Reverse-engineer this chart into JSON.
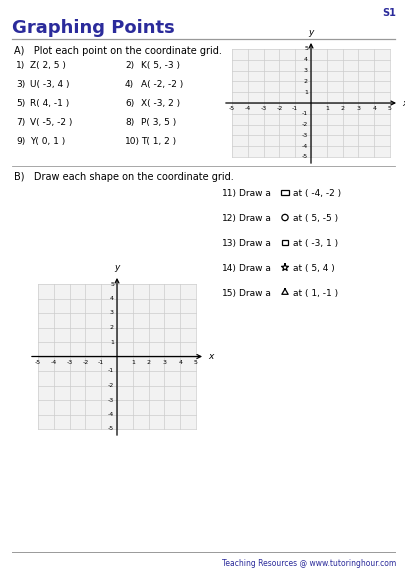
{
  "title": "Graphing Points",
  "s1_label": "S1",
  "section_a_title": "A)   Plot each point on the coordinate grid.",
  "section_b_title": "B)   Draw each shape on the coordinate grid.",
  "points_left": [
    {
      "num": "1)",
      "label": "Z( 2, 5 )"
    },
    {
      "num": "3)",
      "label": "U( -3, 4 )"
    },
    {
      "num": "5)",
      "label": "R( 4, -1 )"
    },
    {
      "num": "7)",
      "label": "V( -5, -2 )"
    },
    {
      "num": "9)",
      "label": "Y( 0, 1 )"
    }
  ],
  "points_right": [
    {
      "num": "2)",
      "label": "K( 5, -3 )"
    },
    {
      "num": "4)",
      "label": "A( -2, -2 )"
    },
    {
      "num": "6)",
      "label": "X( -3, 2 )"
    },
    {
      "num": "8)",
      "label": "P( 3, 5 )"
    },
    {
      "num": "10)",
      "label": "T( 1, 2 )"
    }
  ],
  "shapes": [
    {
      "num": "11)",
      "shape": "rectangle",
      "text": "Draw a",
      "point": "at ( -4, -2 )"
    },
    {
      "num": "12)",
      "shape": "circle",
      "text": "Draw a",
      "point": "at ( 5, -5 )"
    },
    {
      "num": "13)",
      "shape": "square",
      "text": "Draw a",
      "point": "at ( -3, 1 )"
    },
    {
      "num": "14)",
      "shape": "star",
      "text": "Draw a",
      "point": "at ( 5, 4 )"
    },
    {
      "num": "15)",
      "shape": "triangle",
      "text": "Draw a",
      "point": "at ( 1, -1 )"
    }
  ],
  "footer": "Teaching Resources @ www.tutoringhour.com",
  "title_color": "#2B2B9B",
  "grid_color": "#cccccc",
  "grid_bg": "#f2f2f2",
  "footer_color": "#2B2B9B",
  "bg_color": "#ffffff",
  "rule_color": "#999999"
}
